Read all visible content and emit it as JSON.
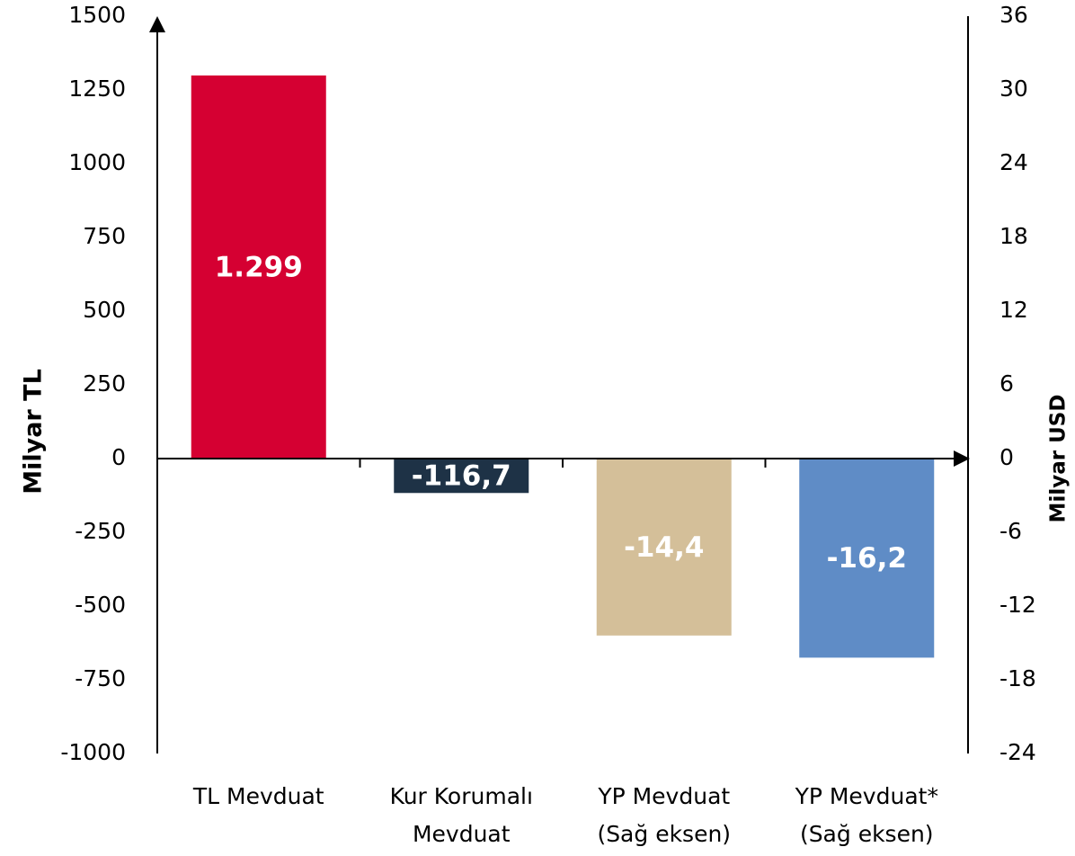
{
  "chart_data": {
    "type": "bar",
    "categories": [
      [
        "TL Mevduat"
      ],
      [
        "Kur Korumalı",
        "Mevduat"
      ],
      [
        "YP Mevduat",
        "(Sağ eksen)"
      ],
      [
        "YP Mevduat*",
        "(Sağ eksen)"
      ]
    ],
    "values": [
      1299,
      -116.7,
      -14.4,
      -16.2
    ],
    "value_labels": [
      "1.299",
      "-116,7",
      "-14,4",
      "-16,2"
    ],
    "colors": [
      "#d50032",
      "#1e3246",
      "#d4bf99",
      "#5f8cc6"
    ],
    "axes": [
      "y",
      "y",
      "y2",
      "y2"
    ],
    "ylabel": "Milyar TL",
    "y2label": "Milyar USD",
    "ylim": [
      -1000,
      1500
    ],
    "yticks": [
      -1000,
      -750,
      -500,
      -250,
      0,
      250,
      500,
      750,
      1000,
      1250,
      1500
    ],
    "y2lim": [
      -24,
      36
    ],
    "y2ticks": [
      -24,
      -18,
      -12,
      -6,
      0,
      6,
      12,
      18,
      24,
      30,
      36
    ]
  }
}
